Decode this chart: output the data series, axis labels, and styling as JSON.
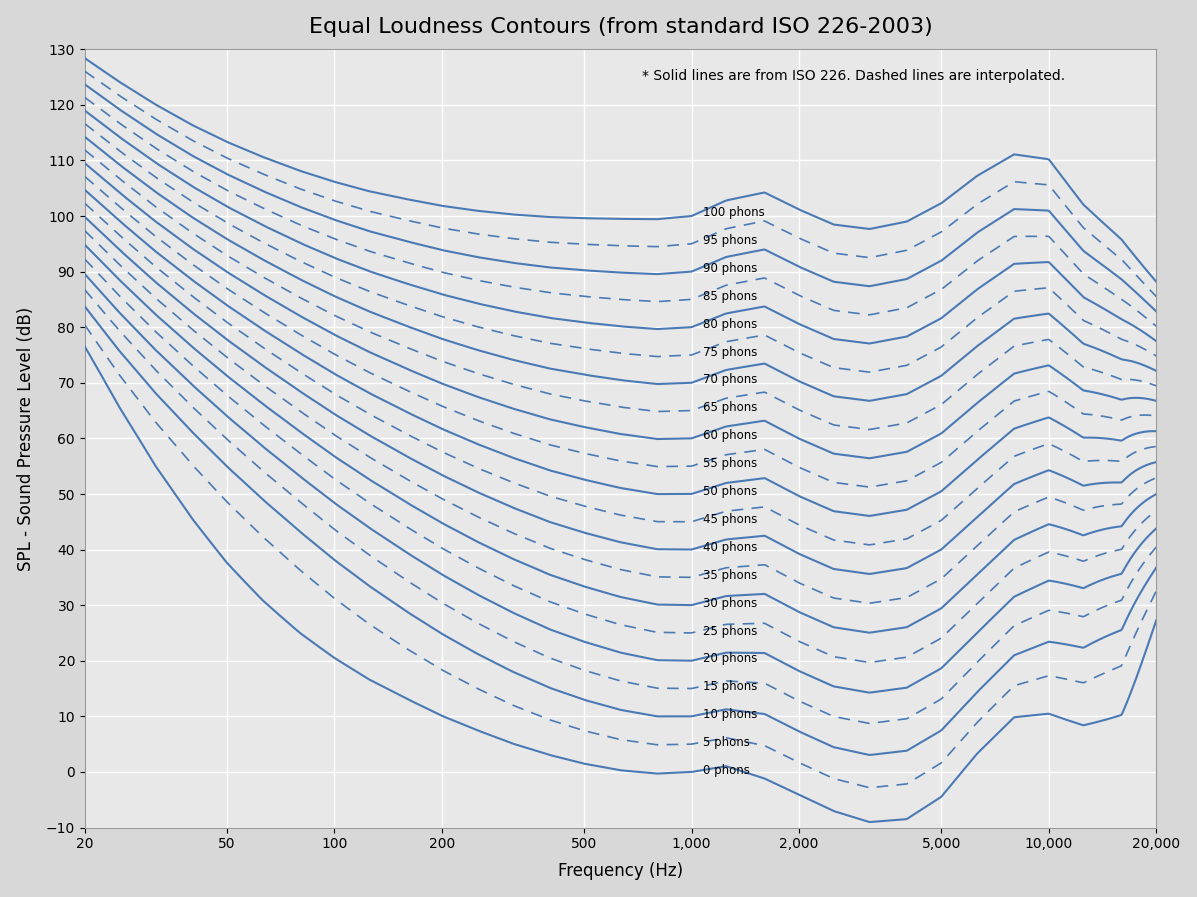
{
  "title": "Equal Loudness Contours (from standard ISO 226-2003)",
  "xlabel": "Frequency (Hz)",
  "ylabel": "SPL - Sound Pressure Level (dB)",
  "annotation": "* Solid lines are from ISO 226. Dashed lines are interpolated.",
  "xlim": [
    20,
    20000
  ],
  "ylim": [
    -10,
    130
  ],
  "yticks": [
    -10,
    0,
    10,
    20,
    30,
    40,
    50,
    60,
    70,
    80,
    90,
    100,
    110,
    120,
    130
  ],
  "solid_phons": [
    0,
    10,
    20,
    30,
    40,
    50,
    60,
    70,
    80,
    90,
    100
  ],
  "dashed_phons": [
    5,
    15,
    25,
    35,
    45,
    55,
    65,
    75,
    85,
    95
  ],
  "line_color": "#4a7ab5",
  "background_color": "#D8D8D8",
  "plot_bg_color": "#E8E8E8",
  "grid_color": "#CCCCCC",
  "title_fontsize": 16,
  "label_fontsize": 12,
  "annotation_fontsize": 10,
  "label_freq": 1050
}
